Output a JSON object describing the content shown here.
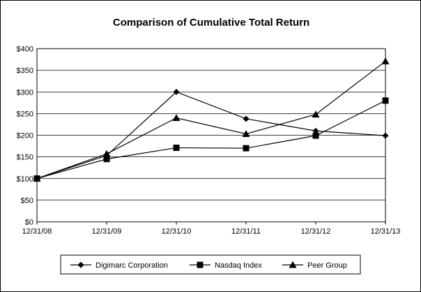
{
  "chart_data": {
    "type": "line",
    "title": "Comparison of Cumulative Total Return",
    "xlabel": "",
    "ylabel": "",
    "categories": [
      "12/31/08",
      "12/31/09",
      "12/31/10",
      "12/31/11",
      "12/31/12",
      "12/31/13"
    ],
    "ylim": [
      0,
      400
    ],
    "ytick_labels": [
      "$0",
      "$50",
      "$100",
      "$150",
      "$200",
      "$250",
      "$300",
      "$350",
      "$400"
    ],
    "grid": "horizontal",
    "legend_position": "bottom",
    "series": [
      {
        "name": "Digimarc Corporation",
        "marker": "diamond",
        "color": "#000000",
        "values": [
          100,
          153,
          300,
          238,
          210,
          199
        ]
      },
      {
        "name": "Nasdaq Index",
        "marker": "square",
        "color": "#000000",
        "values": [
          100,
          145,
          171,
          170,
          199,
          280
        ]
      },
      {
        "name": "Peer Group",
        "marker": "triangle",
        "color": "#000000",
        "values": [
          100,
          157,
          240,
          203,
          248,
          371
        ]
      }
    ]
  }
}
